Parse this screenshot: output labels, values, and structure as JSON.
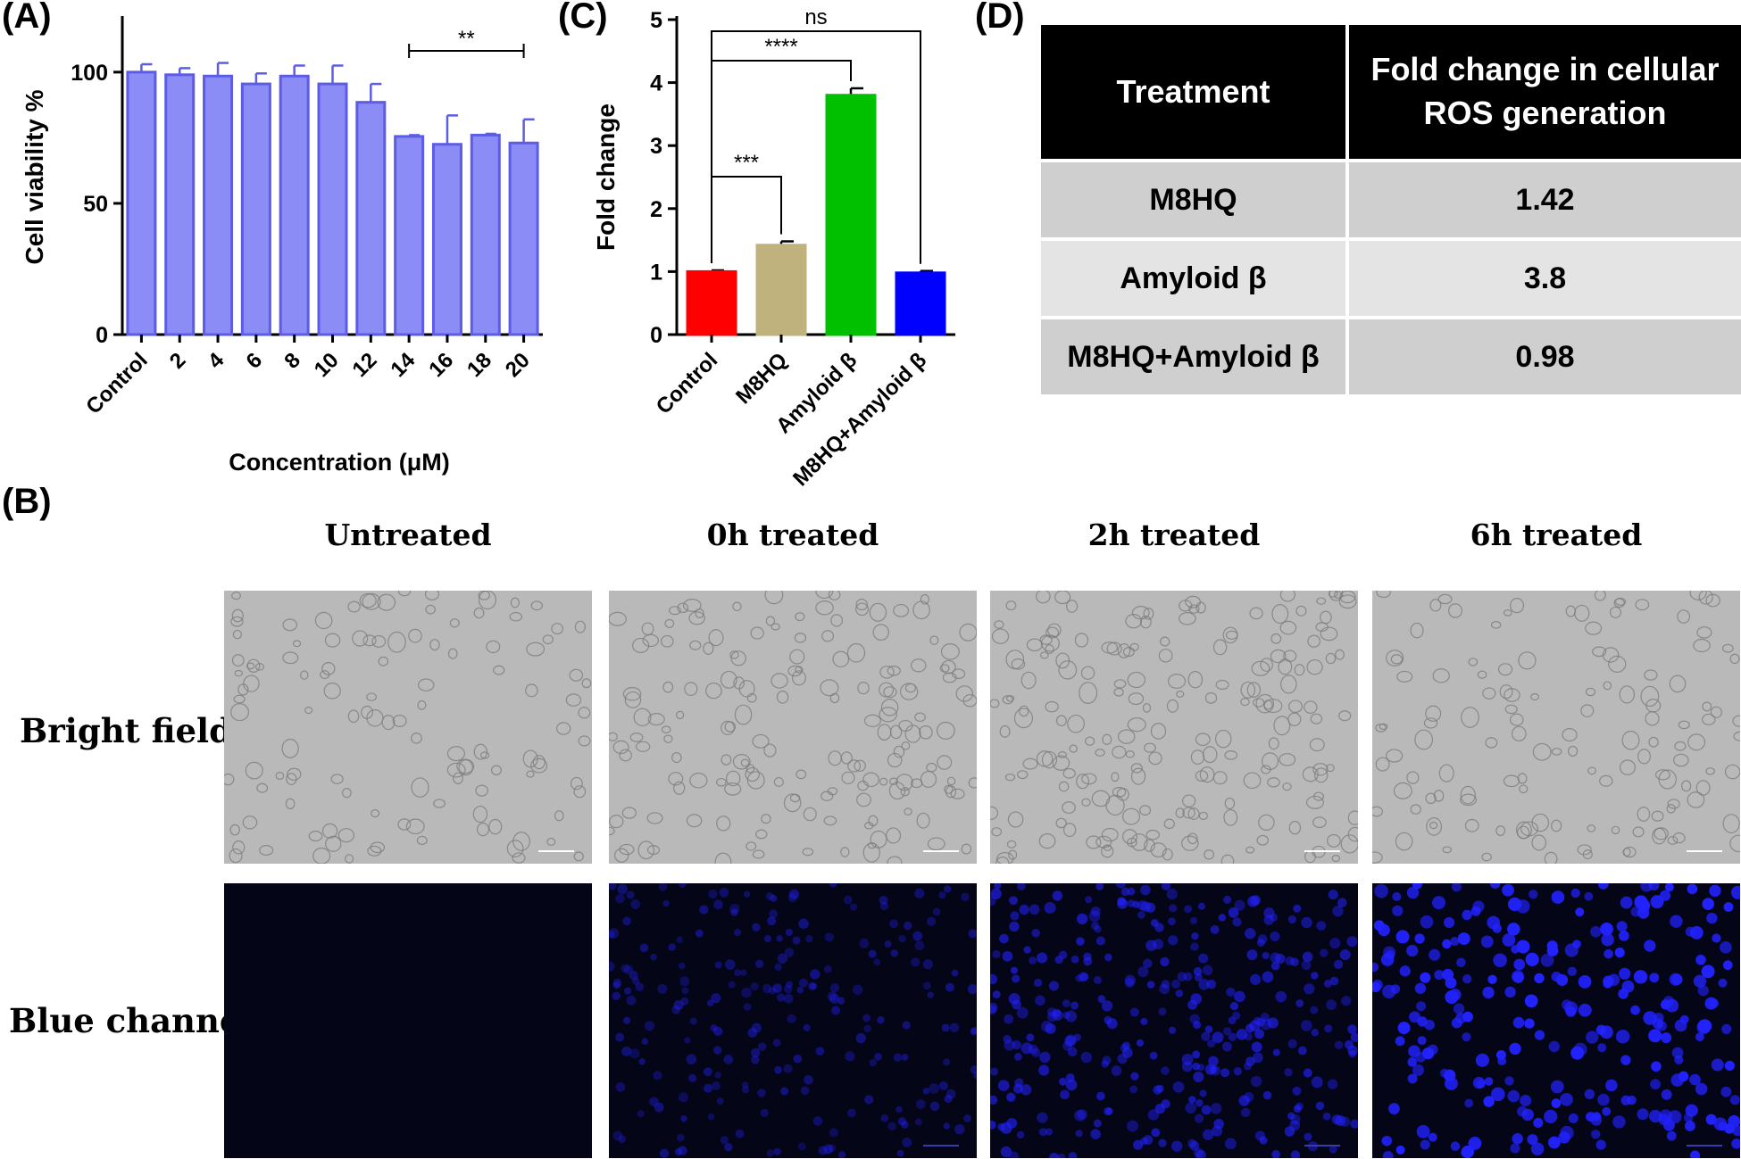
{
  "panel_labels": {
    "a": "(A)",
    "b": "(B)",
    "c": "(C)",
    "d": "(D)"
  },
  "chart_data": [
    {
      "id": "A",
      "type": "bar",
      "ylabel": "Cell viability %",
      "xlabel": "Concentration (μM)",
      "ylim": [
        0,
        120
      ],
      "yticks": [
        0,
        50,
        100
      ],
      "categories": [
        "Control",
        "2",
        "4",
        "6",
        "8",
        "10",
        "12",
        "14",
        "16",
        "18",
        "20"
      ],
      "values": [
        100,
        99,
        98.5,
        95.5,
        98.5,
        95.5,
        88.5,
        75.5,
        72.5,
        76,
        73
      ],
      "errors": [
        3,
        2.5,
        5,
        4,
        4,
        7,
        7,
        0.5,
        11,
        0.5,
        9
      ],
      "color": "#8b8cf5",
      "edge_color": "#5c5ce6",
      "significance": [
        {
          "from": "14",
          "to": "20",
          "label": "**"
        }
      ]
    },
    {
      "id": "C",
      "type": "bar",
      "ylabel": "Fold change",
      "xlabel": "",
      "ylim": [
        0,
        5
      ],
      "yticks": [
        0,
        1,
        2,
        3,
        4,
        5
      ],
      "categories": [
        "Control",
        "M8HQ",
        "Amyloid β",
        "M8HQ+Amyloid β"
      ],
      "values": [
        1.0,
        1.42,
        3.8,
        0.98
      ],
      "errors": [
        0.02,
        0.06,
        0.11,
        0.03
      ],
      "colors": [
        "#ff0000",
        "#c0b27c",
        "#00c000",
        "#0000ff"
      ],
      "significance": [
        {
          "from": "Control",
          "to": "M8HQ",
          "label": "***"
        },
        {
          "from": "Control",
          "to": "Amyloid β",
          "label": "****"
        },
        {
          "from": "Control",
          "to": "M8HQ+Amyloid β",
          "label": "ns"
        }
      ]
    },
    {
      "id": "D",
      "type": "table",
      "columns": [
        "Treatment",
        "Fold change in cellular ROS generation"
      ],
      "rows": [
        {
          "treatment": "M8HQ",
          "value": "1.42"
        },
        {
          "treatment": "Amyloid β",
          "value": "3.8"
        },
        {
          "treatment": "M8HQ+Amyloid β",
          "value": "0.98"
        }
      ]
    }
  ],
  "microscopy": {
    "columns": [
      "Untreated",
      "0h treated",
      "2h treated",
      "6h treated"
    ],
    "rows": [
      "Bright field",
      "Blue channel"
    ],
    "brightfield_color": "#b9b9b9",
    "blue_background": "#050518",
    "cell_blue": "#2222ff",
    "scalebar_color": "#ffffff"
  }
}
